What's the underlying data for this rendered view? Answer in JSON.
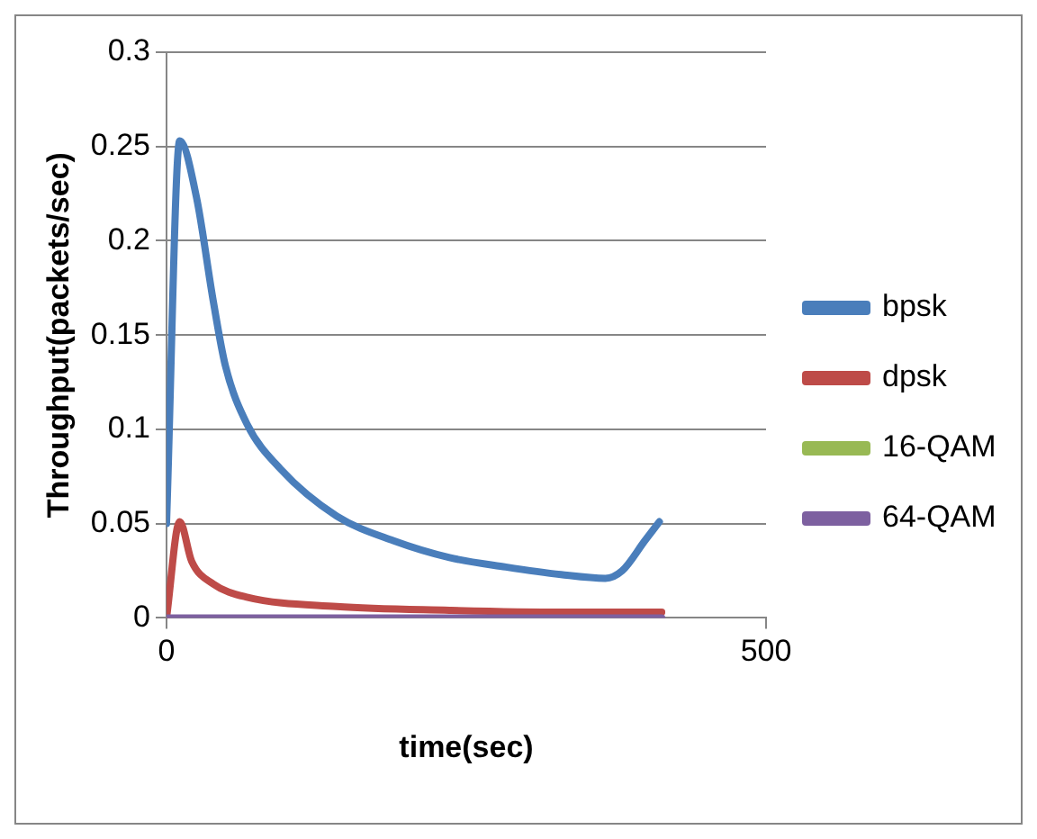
{
  "chart_data": {
    "type": "line",
    "xlabel": "time(sec)",
    "ylabel": "Throughput(packets/sec)",
    "xlim": [
      0,
      500
    ],
    "xticks": [
      0,
      500
    ],
    "ylim": [
      0,
      0.3
    ],
    "yticks": [
      0,
      0.05,
      0.1,
      0.15,
      0.2,
      0.25,
      0.3
    ],
    "grid": "y",
    "legend": "right",
    "marker": "none",
    "line_style": "solid",
    "series": [
      {
        "name": "bpsk",
        "color": "#4a7ebb",
        "x": [
          0,
          11,
          25,
          39,
          49,
          67,
          95,
          142,
          189,
          236,
          283,
          329,
          366,
          380,
          399,
          411
        ],
        "values": [
          0.05,
          0.253,
          0.223,
          0.168,
          0.134,
          0.103,
          0.079,
          0.054,
          0.041,
          0.032,
          0.027,
          0.023,
          0.021,
          0.025,
          0.041,
          0.051
        ]
      },
      {
        "name": "dpsk",
        "color": "#be4b48",
        "x": [
          0,
          11,
          21,
          39,
          67,
          142,
          236,
          329,
          413
        ],
        "values": [
          0,
          0.051,
          0.03,
          0.018,
          0.011,
          0.006,
          0.004,
          0.003,
          0.003
        ]
      },
      {
        "name": "16-QAM",
        "color": "#98b954",
        "values": [
          null,
          null
        ]
      },
      {
        "name": "64-QAM",
        "color": "#7d60a0",
        "x": [
          0,
          413
        ],
        "values": [
          0,
          0
        ]
      }
    ]
  }
}
